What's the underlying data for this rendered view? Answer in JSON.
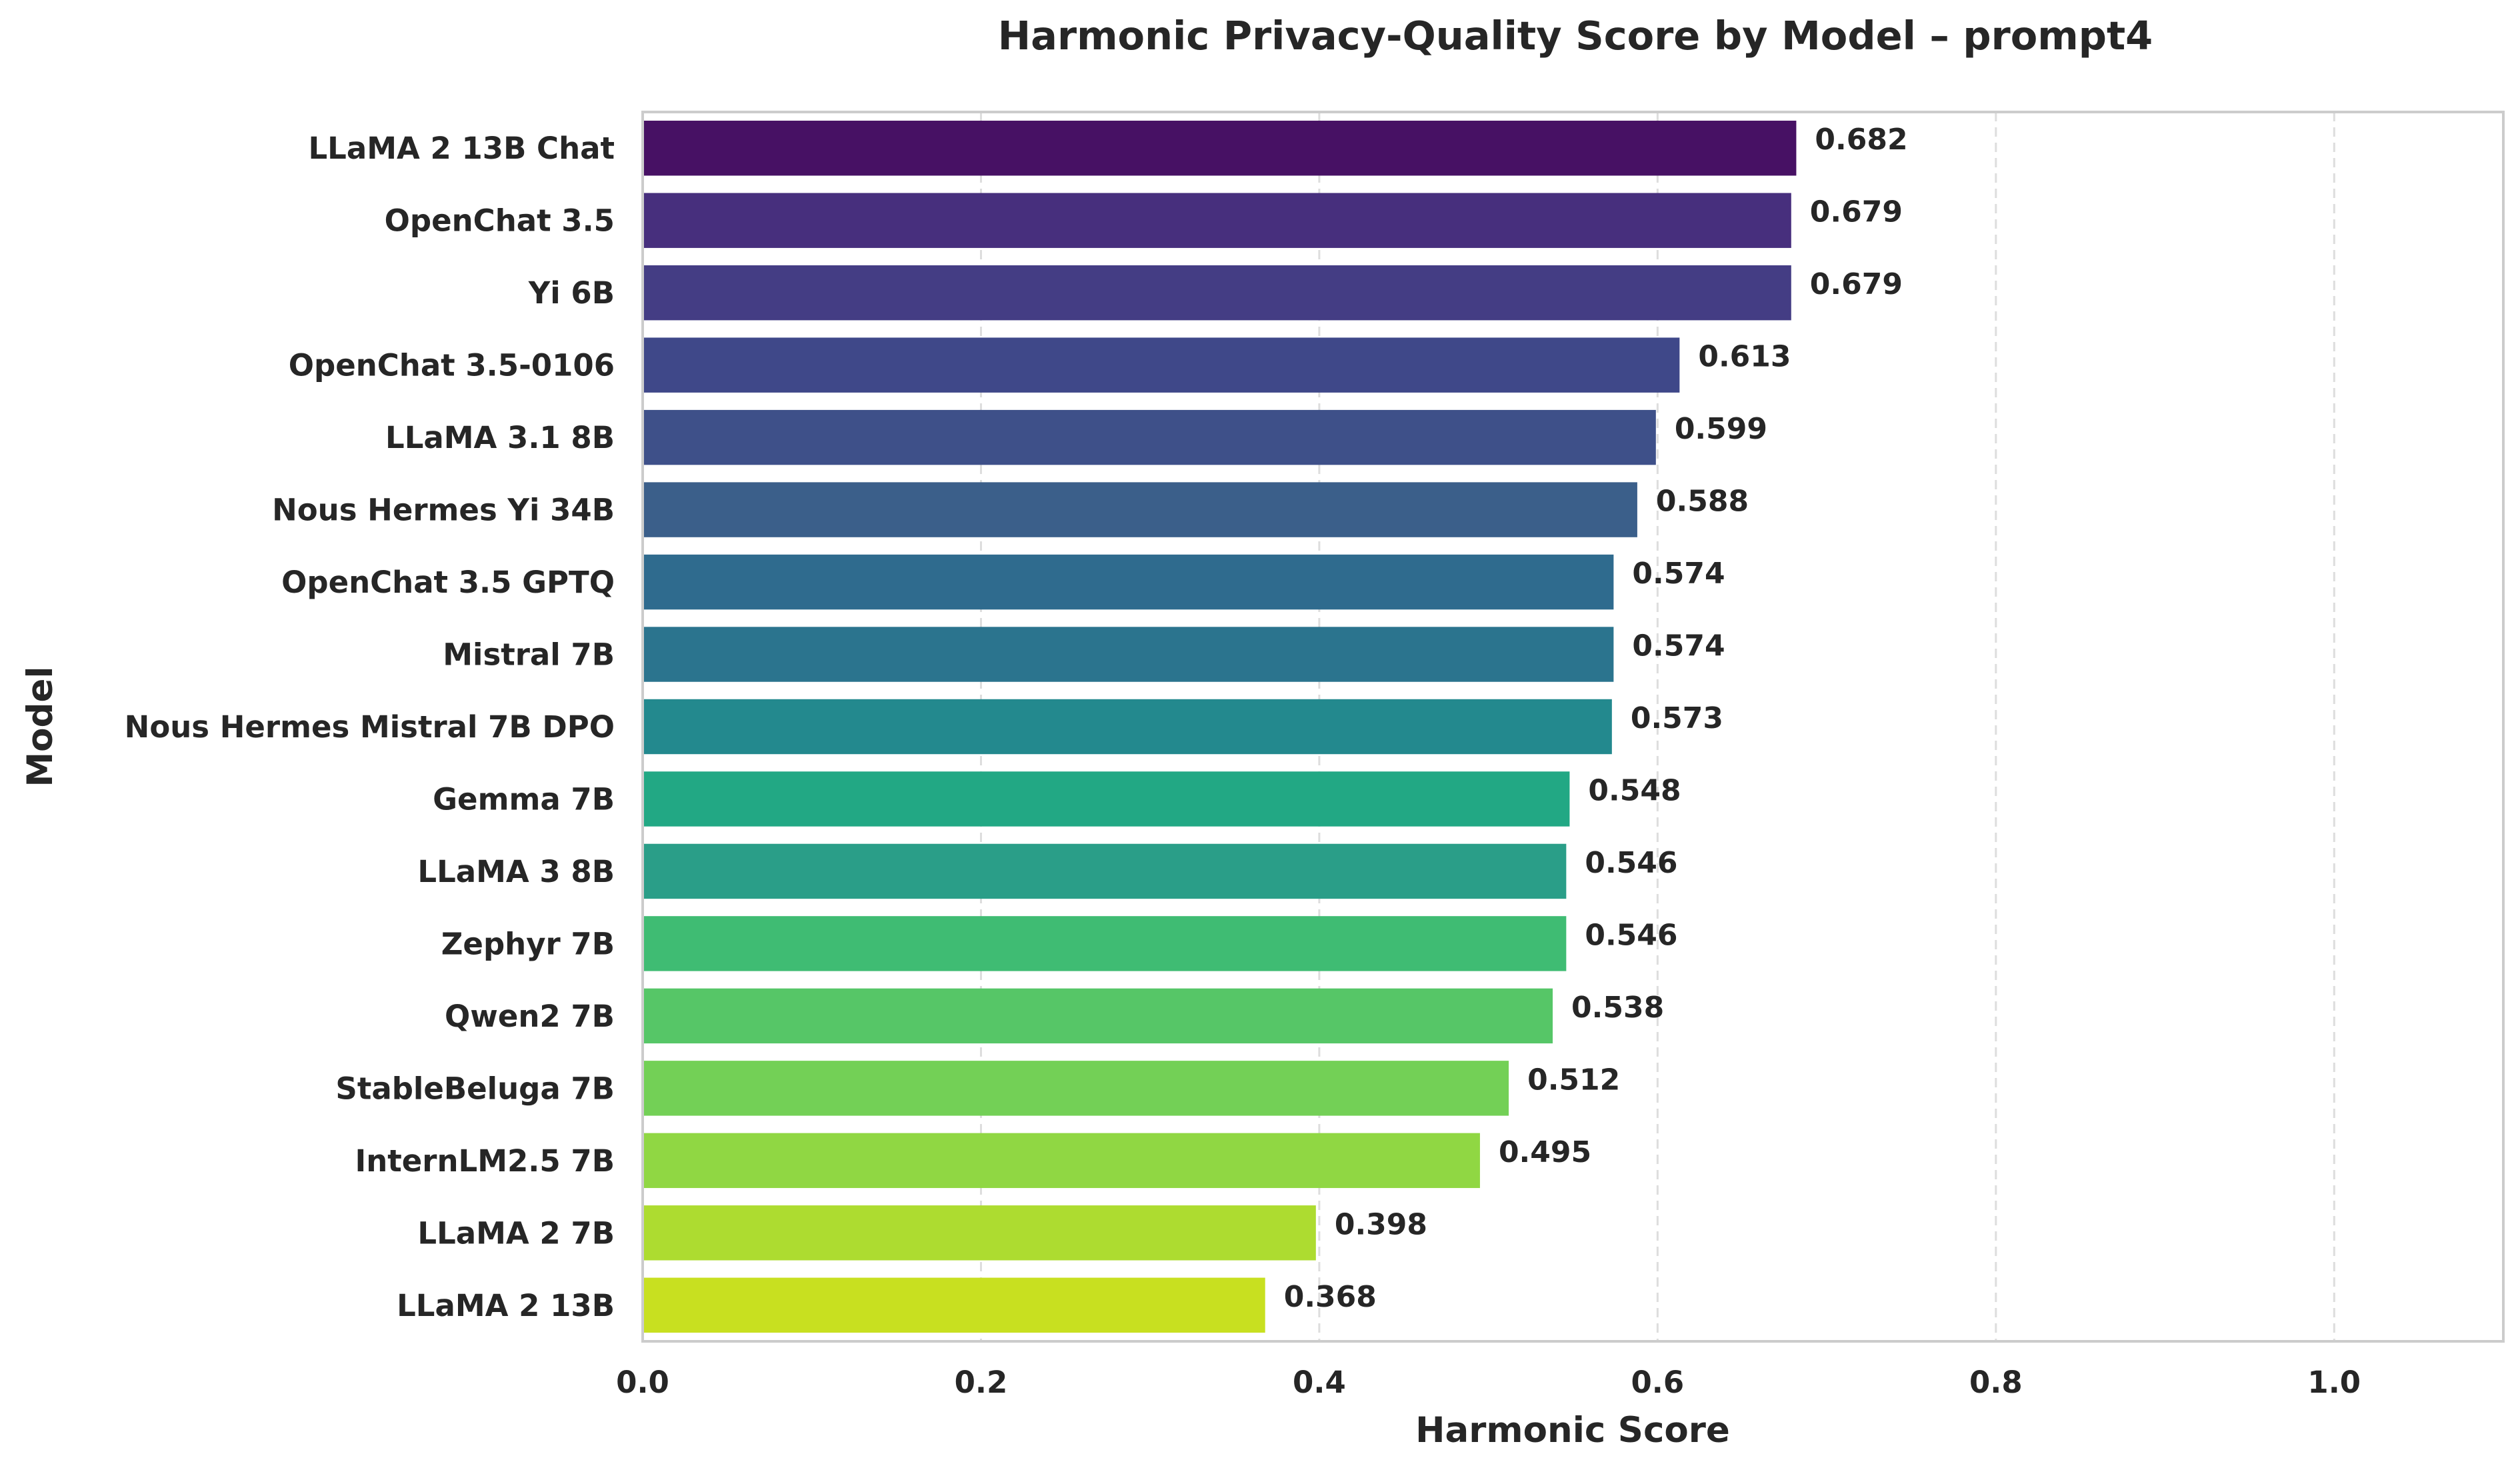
{
  "chart_data": {
    "type": "bar",
    "orientation": "horizontal",
    "title": "Harmonic Privacy-Quality Score by Model – prompt4",
    "xlabel": "Harmonic Score",
    "ylabel": "Model",
    "xlim": [
      0,
      1.1
    ],
    "xticks": [
      "0.0",
      "0.2",
      "0.4",
      "0.6",
      "0.8",
      "1.0"
    ],
    "grid": "vertical dashed",
    "colormap": "viridis",
    "categories": [
      "LLaMA 2 13B Chat",
      "OpenChat 3.5",
      "Yi 6B",
      "OpenChat 3.5-0106",
      "LLaMA 3.1 8B",
      "Nous Hermes Yi 34B",
      "OpenChat 3.5 GPTQ",
      "Mistral 7B",
      "Nous Hermes Mistral 7B DPO",
      "Gemma 7B",
      "LLaMA 3 8B",
      "Zephyr 7B",
      "Qwen2 7B",
      "StableBeluga 7B",
      "InternLM2.5 7B",
      "LLaMA 2 7B",
      "LLaMA 2 13B"
    ],
    "values": [
      0.682,
      0.679,
      0.679,
      0.613,
      0.599,
      0.588,
      0.574,
      0.574,
      0.573,
      0.548,
      0.546,
      0.546,
      0.538,
      0.512,
      0.495,
      0.398,
      0.368
    ],
    "value_labels": [
      "0.682",
      "0.679",
      "0.679",
      "0.613",
      "0.599",
      "0.588",
      "0.574",
      "0.574",
      "0.573",
      "0.548",
      "0.546",
      "0.546",
      "0.538",
      "0.512",
      "0.495",
      "0.398",
      "0.368"
    ],
    "colors": [
      "#471164",
      "#472f7d",
      "#443d84",
      "#3f4889",
      "#3e5089",
      "#3b5f8a",
      "#2f6b8e",
      "#2b748e",
      "#23898e",
      "#22a884",
      "#2a9e88",
      "#3fbc73",
      "#56c667",
      "#73d056",
      "#90d743",
      "#addc30",
      "#c8e020"
    ]
  }
}
